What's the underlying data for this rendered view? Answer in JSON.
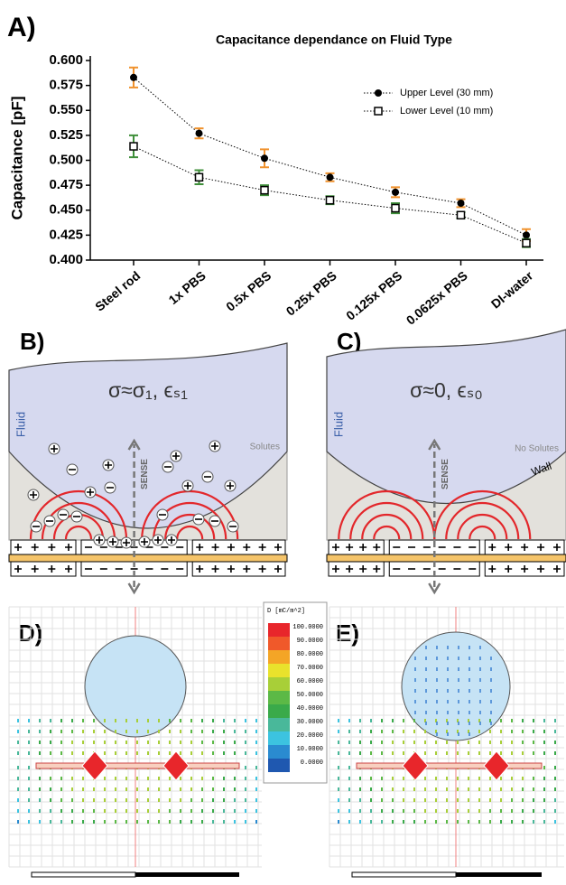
{
  "chart_data": {
    "type": "line",
    "title": "Capacitance dependance on Fluid Type",
    "ylabel": "Capacitance [pF]",
    "categories": [
      "Steel rod",
      "1x PBS",
      "0.5x PBS",
      "0.25x PBS",
      "0.125x PBS",
      "0.0625x PBS",
      "DI-water"
    ],
    "series": [
      {
        "name": "Upper Level (30 mm)",
        "color": "#000000",
        "error_color": "#f0922e",
        "marker": "circle",
        "values": [
          0.583,
          0.527,
          0.502,
          0.483,
          0.468,
          0.457,
          0.425
        ],
        "errors": [
          0.01,
          0.005,
          0.009,
          0.004,
          0.005,
          0.004,
          0.006
        ]
      },
      {
        "name": "Lower Level (10 mm)",
        "color": "#000000",
        "error_color": "#3f8f3a",
        "marker": "square",
        "values": [
          0.514,
          0.483,
          0.47,
          0.46,
          0.452,
          0.445,
          0.417
        ],
        "errors": [
          0.011,
          0.007,
          0.005,
          0.004,
          0.005,
          0.003,
          0.004
        ]
      }
    ],
    "ylim": [
      0.4,
      0.6
    ],
    "yticks": [
      {
        "value": 0.4,
        "label": "0.400"
      },
      {
        "value": 0.425,
        "label": "0.425"
      },
      {
        "value": 0.45,
        "label": "0.450"
      },
      {
        "value": 0.475,
        "label": "0.475"
      },
      {
        "value": 0.5,
        "label": "0.500"
      },
      {
        "value": 0.525,
        "label": "0.525"
      },
      {
        "value": 0.55,
        "label": "0.550"
      },
      {
        "value": 0.575,
        "label": "0.575"
      },
      {
        "value": 0.6,
        "label": "0.600"
      }
    ],
    "legend": "upper right"
  },
  "panel_labels": [
    "A)",
    "B)",
    "C)",
    "D)",
    "E)"
  ],
  "panel_b": {
    "formula": "σ≈σ₁, ϵₛ₁",
    "fluid": "Fluid",
    "solutes": "Solutes",
    "sense": "SENSE"
  },
  "panel_c": {
    "formula": "σ≈0, ϵₛ₀",
    "fluid": "Fluid",
    "solutes": "No Solutes",
    "sense": "SENSE",
    "wall": "Wall"
  },
  "colorbar": {
    "title": "D [mC/m^2]",
    "ticks": [
      {
        "value": 100,
        "label": "100.0000"
      },
      {
        "value": 90,
        "label": "90.0000"
      },
      {
        "value": 80,
        "label": "80.0000"
      },
      {
        "value": 70,
        "label": "70.0000"
      },
      {
        "value": 60,
        "label": "60.0000"
      },
      {
        "value": 50,
        "label": "50.0000"
      },
      {
        "value": 40,
        "label": "40.0000"
      },
      {
        "value": 30,
        "label": "30.0000"
      },
      {
        "value": 20,
        "label": "20.0000"
      },
      {
        "value": 10,
        "label": "10.0000"
      },
      {
        "value": 0,
        "label": "0.0000"
      }
    ],
    "colors": [
      "#e8262b",
      "#f0592a",
      "#f4a526",
      "#e9e22c",
      "#a8cf38",
      "#5cb946",
      "#3aaa4a",
      "#49b89a",
      "#3cc3e0",
      "#2a8bd0",
      "#1f58b0"
    ]
  }
}
